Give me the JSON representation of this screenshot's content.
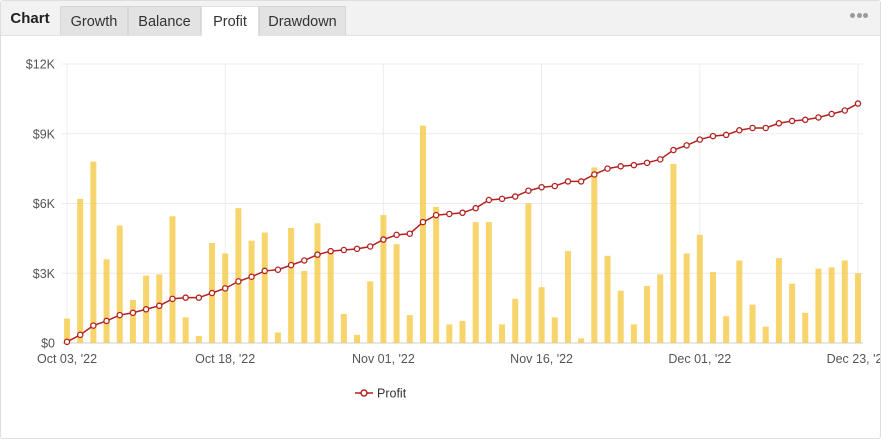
{
  "header": {
    "title": "Chart",
    "tabs": [
      {
        "label": "Growth",
        "active": false
      },
      {
        "label": "Balance",
        "active": false
      },
      {
        "label": "Profit",
        "active": true
      },
      {
        "label": "Drawdown",
        "active": false
      }
    ],
    "menu_icon": "more-dots-icon"
  },
  "chart_data": {
    "type": "bar",
    "title": "",
    "xlabel": "",
    "ylabel": "",
    "ylim": [
      0,
      12000
    ],
    "y_ticks": [
      {
        "value": 0,
        "label": "$0"
      },
      {
        "value": 3000,
        "label": "$3K"
      },
      {
        "value": 6000,
        "label": "$6K"
      },
      {
        "value": 9000,
        "label": "$9K"
      },
      {
        "value": 12000,
        "label": "$12K"
      }
    ],
    "x_ticks": [
      {
        "index": 0,
        "label": "Oct 03, '22"
      },
      {
        "index": 12,
        "label": "Oct 18, '22"
      },
      {
        "index": 24,
        "label": "Nov 01, '22"
      },
      {
        "index": 36,
        "label": "Nov 16, '22"
      },
      {
        "index": 48,
        "label": "Dec 01, '22"
      },
      {
        "index": 60,
        "label": "Dec 23, '22"
      }
    ],
    "grid": true,
    "legend_position": "bottom-center",
    "series": [
      {
        "name": "",
        "type": "bar",
        "color": "#f5c842",
        "values": [
          1050,
          6200,
          7800,
          3600,
          5050,
          1850,
          2900,
          2950,
          5450,
          1100,
          300,
          4300,
          3850,
          5800,
          4400,
          4750,
          450,
          4950,
          3100,
          5150,
          3900,
          1250,
          350,
          2650,
          5500,
          4250,
          1200,
          9350,
          5850,
          800,
          950,
          5200,
          5200,
          800,
          1900,
          6000,
          2400,
          1100,
          3950,
          200,
          7550,
          3750,
          2250,
          800,
          2450,
          2950,
          7700,
          3850,
          4650,
          3050,
          1150,
          3550,
          1650,
          700,
          3650,
          2550,
          1300,
          3200,
          3250,
          3550,
          3000
        ]
      },
      {
        "name": "Profit",
        "type": "line",
        "color": "#b22222",
        "values": [
          50,
          350,
          750,
          950,
          1200,
          1300,
          1450,
          1600,
          1900,
          1950,
          1950,
          2150,
          2350,
          2650,
          2850,
          3100,
          3150,
          3350,
          3550,
          3800,
          3950,
          4000,
          4050,
          4150,
          4450,
          4650,
          4700,
          5200,
          5500,
          5550,
          5600,
          5800,
          6150,
          6200,
          6300,
          6550,
          6700,
          6750,
          6950,
          6950,
          7250,
          7500,
          7600,
          7650,
          7750,
          7900,
          8300,
          8500,
          8750,
          8900,
          8950,
          9150,
          9250,
          9250,
          9450,
          9550,
          9600,
          9700,
          9850,
          10000,
          10300
        ]
      }
    ]
  }
}
